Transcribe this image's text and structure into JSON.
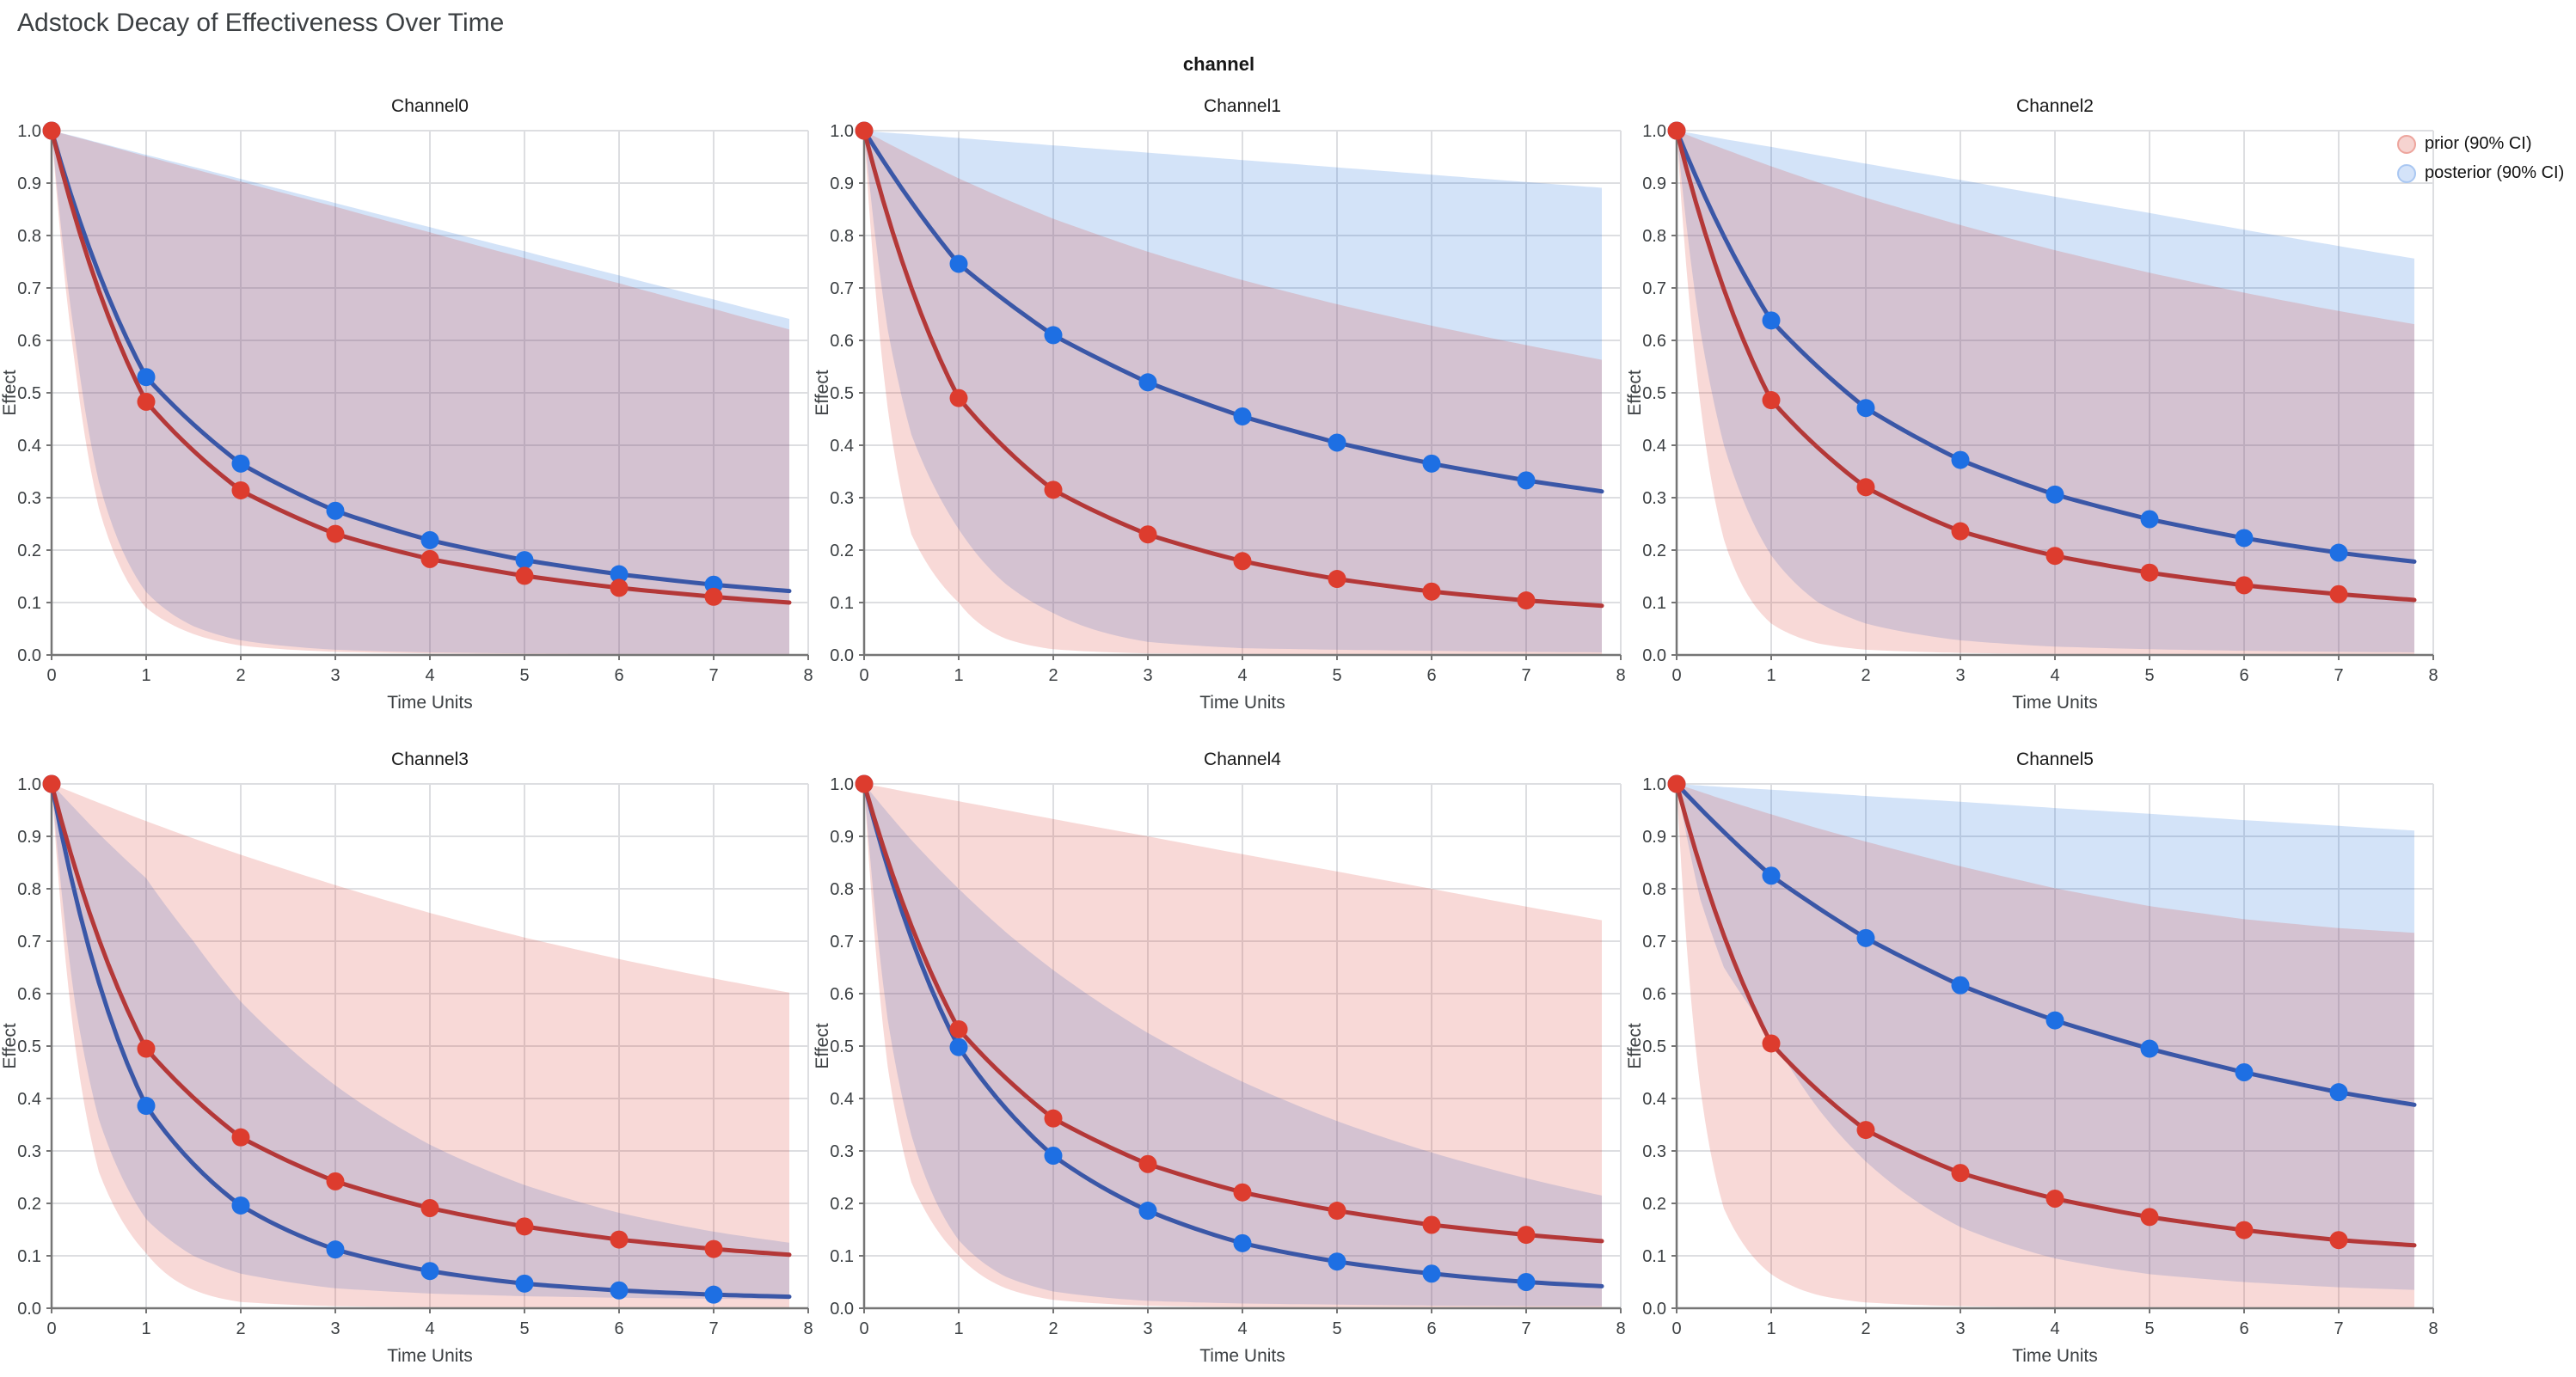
{
  "title": "Adstock Decay of Effectiveness Over Time",
  "facet_label": "channel",
  "legend": {
    "items": [
      {
        "label": "prior (90% CI)",
        "fill": "#F6D3D0",
        "stroke": "#EDA49C"
      },
      {
        "label": "posterior (90% CI)",
        "fill": "#D4E3F9",
        "stroke": "#A9C7F2"
      }
    ]
  },
  "style": {
    "prior_line": "#B43838",
    "prior_marker": "#DD3C2E",
    "posterior_line": "#3A57A7",
    "posterior_marker": "#1E6FE3",
    "prior_band_fill": "rgba(216,44,33,0.18)",
    "posterior_band_fill": "rgba(35,115,220,0.20)",
    "grid_color": "#DDDEE1",
    "axis_color": "#757575",
    "tick_label_color": "#3C4043",
    "axis_title_color": "#3C4043"
  },
  "chart_data": [
    {
      "type": "line",
      "title": "Channel0",
      "xlabel": "Time Units",
      "ylabel": "Effect",
      "xlim": [
        0,
        8
      ],
      "ylim": [
        0,
        1
      ],
      "xticks": [
        0,
        1,
        2,
        3,
        4,
        5,
        6,
        7,
        8
      ],
      "yticks": [
        0,
        0.1,
        0.2,
        0.3,
        0.4,
        0.5,
        0.6,
        0.7,
        0.8,
        0.9,
        1.0
      ],
      "x": [
        0,
        1,
        2,
        3,
        4,
        5,
        6,
        7,
        7.8
      ],
      "series": [
        {
          "name": "prior",
          "values": [
            1.0,
            0.483,
            0.314,
            0.231,
            0.183,
            0.151,
            0.128,
            0.111,
            0.1
          ]
        },
        {
          "name": "posterior",
          "values": [
            1.0,
            0.53,
            0.365,
            0.275,
            0.219,
            0.181,
            0.154,
            0.134,
            0.122
          ]
        }
      ],
      "bands": [
        {
          "name": "prior (90% CI)",
          "x": [
            0,
            0.25,
            0.5,
            1,
            1.5,
            2,
            3,
            4,
            5,
            6,
            7,
            7.8
          ],
          "upper": [
            1,
            0.988,
            0.976,
            0.951,
            0.927,
            0.903,
            0.855,
            0.806,
            0.757,
            0.709,
            0.66,
            0.621
          ],
          "lower": [
            1,
            0.55,
            0.28,
            0.09,
            0.04,
            0.018,
            0.006,
            0.003,
            0.002,
            0.001,
            0.001,
            0.001
          ]
        },
        {
          "name": "posterior (90% CI)",
          "x": [
            0,
            0.25,
            0.5,
            1,
            1.5,
            2,
            3,
            4,
            5,
            6,
            7,
            7.8
          ],
          "upper": [
            1,
            0.989,
            0.977,
            0.954,
            0.931,
            0.908,
            0.862,
            0.816,
            0.77,
            0.724,
            0.678,
            0.641
          ],
          "lower": [
            1,
            0.6,
            0.33,
            0.12,
            0.055,
            0.028,
            0.01,
            0.005,
            0.003,
            0.002,
            0.002,
            0.002
          ]
        }
      ]
    },
    {
      "type": "line",
      "title": "Channel1",
      "xlabel": "Time Units",
      "ylabel": "Effect",
      "xlim": [
        0,
        8
      ],
      "ylim": [
        0,
        1
      ],
      "xticks": [
        0,
        1,
        2,
        3,
        4,
        5,
        6,
        7,
        8
      ],
      "yticks": [
        0,
        0.1,
        0.2,
        0.3,
        0.4,
        0.5,
        0.6,
        0.7,
        0.8,
        0.9,
        1.0
      ],
      "x": [
        0,
        1,
        2,
        3,
        4,
        5,
        6,
        7,
        7.8
      ],
      "series": [
        {
          "name": "prior",
          "values": [
            1.0,
            0.49,
            0.315,
            0.23,
            0.179,
            0.145,
            0.121,
            0.104,
            0.094
          ]
        },
        {
          "name": "posterior",
          "values": [
            1.0,
            0.746,
            0.61,
            0.52,
            0.455,
            0.405,
            0.365,
            0.333,
            0.312
          ]
        }
      ],
      "bands": [
        {
          "name": "prior (90% CI)",
          "x": [
            0,
            0.25,
            0.5,
            1,
            1.5,
            2,
            3,
            4,
            5,
            6,
            7,
            7.8
          ],
          "upper": [
            1,
            0.976,
            0.953,
            0.909,
            0.869,
            0.832,
            0.769,
            0.715,
            0.669,
            0.628,
            0.591,
            0.563
          ],
          "lower": [
            1,
            0.47,
            0.23,
            0.1,
            0.031,
            0.011,
            0.003,
            0.002,
            0.001,
            0.001,
            0.001,
            0.001
          ]
        },
        {
          "name": "posterior (90% CI)",
          "x": [
            0,
            0.25,
            0.5,
            1,
            1.5,
            2,
            3,
            4,
            5,
            6,
            7,
            7.8
          ],
          "upper": [
            1,
            0.996,
            0.993,
            0.986,
            0.979,
            0.972,
            0.958,
            0.944,
            0.93,
            0.916,
            0.902,
            0.891
          ],
          "lower": [
            1,
            0.62,
            0.42,
            0.24,
            0.135,
            0.08,
            0.025,
            0.013,
            0.01,
            0.008,
            0.006,
            0.005
          ]
        }
      ]
    },
    {
      "type": "line",
      "title": "Channel2",
      "xlabel": "Time Units",
      "ylabel": "Effect",
      "xlim": [
        0,
        8
      ],
      "ylim": [
        0,
        1
      ],
      "xticks": [
        0,
        1,
        2,
        3,
        4,
        5,
        6,
        7,
        8
      ],
      "yticks": [
        0,
        0.1,
        0.2,
        0.3,
        0.4,
        0.5,
        0.6,
        0.7,
        0.8,
        0.9,
        1.0
      ],
      "x": [
        0,
        1,
        2,
        3,
        4,
        5,
        6,
        7,
        7.8
      ],
      "series": [
        {
          "name": "prior",
          "values": [
            1.0,
            0.486,
            0.32,
            0.236,
            0.189,
            0.157,
            0.133,
            0.116,
            0.105
          ]
        },
        {
          "name": "posterior",
          "values": [
            1.0,
            0.638,
            0.471,
            0.372,
            0.306,
            0.259,
            0.223,
            0.195,
            0.178
          ]
        }
      ],
      "bands": [
        {
          "name": "prior (90% CI)",
          "x": [
            0,
            0.25,
            0.5,
            1,
            1.5,
            2,
            3,
            4,
            5,
            6,
            7,
            7.8
          ],
          "upper": [
            1,
            0.982,
            0.965,
            0.932,
            0.901,
            0.872,
            0.82,
            0.772,
            0.729,
            0.691,
            0.656,
            0.631
          ],
          "lower": [
            1,
            0.48,
            0.22,
            0.06,
            0.022,
            0.01,
            0.004,
            0.002,
            0.001,
            0.001,
            0.001,
            0.001
          ]
        },
        {
          "name": "posterior (90% CI)",
          "x": [
            0,
            0.25,
            0.5,
            1,
            1.5,
            2,
            3,
            4,
            5,
            6,
            7,
            7.8
          ],
          "upper": [
            1,
            0.992,
            0.984,
            0.969,
            0.953,
            0.937,
            0.906,
            0.874,
            0.843,
            0.811,
            0.78,
            0.756
          ],
          "lower": [
            1,
            0.62,
            0.4,
            0.19,
            0.1,
            0.06,
            0.028,
            0.016,
            0.011,
            0.008,
            0.006,
            0.005
          ]
        }
      ]
    },
    {
      "type": "line",
      "title": "Channel3",
      "xlabel": "Time Units",
      "ylabel": "Effect",
      "xlim": [
        0,
        8
      ],
      "ylim": [
        0,
        1
      ],
      "xticks": [
        0,
        1,
        2,
        3,
        4,
        5,
        6,
        7,
        8
      ],
      "yticks": [
        0,
        0.1,
        0.2,
        0.3,
        0.4,
        0.5,
        0.6,
        0.7,
        0.8,
        0.9,
        1.0
      ],
      "x": [
        0,
        1,
        2,
        3,
        4,
        5,
        6,
        7,
        7.8
      ],
      "series": [
        {
          "name": "prior",
          "values": [
            1.0,
            0.495,
            0.326,
            0.242,
            0.191,
            0.156,
            0.131,
            0.113,
            0.102
          ]
        },
        {
          "name": "posterior",
          "values": [
            1.0,
            0.386,
            0.196,
            0.112,
            0.071,
            0.047,
            0.034,
            0.026,
            0.022
          ]
        }
      ],
      "bands": [
        {
          "name": "prior (90% CI)",
          "x": [
            0,
            0.25,
            0.5,
            1,
            1.5,
            2,
            3,
            4,
            5,
            6,
            7,
            7.8
          ],
          "upper": [
            1,
            0.982,
            0.964,
            0.929,
            0.896,
            0.865,
            0.807,
            0.754,
            0.707,
            0.666,
            0.629,
            0.602
          ],
          "lower": [
            1,
            0.5,
            0.26,
            0.105,
            0.035,
            0.012,
            0.004,
            0.002,
            0.001,
            0.001,
            0.001,
            0.001
          ]
        },
        {
          "name": "posterior (90% CI)",
          "x": [
            0,
            0.25,
            0.5,
            1,
            1.5,
            2,
            3,
            4,
            5,
            6,
            7,
            7.8
          ],
          "upper": [
            1,
            0.952,
            0.905,
            0.82,
            0.7,
            0.585,
            0.425,
            0.312,
            0.235,
            0.182,
            0.146,
            0.125
          ],
          "lower": [
            1,
            0.58,
            0.36,
            0.17,
            0.1,
            0.066,
            0.038,
            0.028,
            0.023,
            0.02,
            0.018,
            0.017
          ]
        }
      ]
    },
    {
      "type": "line",
      "title": "Channel4",
      "xlabel": "Time Units",
      "ylabel": "Effect",
      "xlim": [
        0,
        8
      ],
      "ylim": [
        0,
        1
      ],
      "xticks": [
        0,
        1,
        2,
        3,
        4,
        5,
        6,
        7,
        8
      ],
      "yticks": [
        0,
        0.1,
        0.2,
        0.3,
        0.4,
        0.5,
        0.6,
        0.7,
        0.8,
        0.9,
        1.0
      ],
      "x": [
        0,
        1,
        2,
        3,
        4,
        5,
        6,
        7,
        7.8
      ],
      "series": [
        {
          "name": "prior",
          "values": [
            1.0,
            0.532,
            0.362,
            0.275,
            0.221,
            0.186,
            0.159,
            0.14,
            0.128
          ]
        },
        {
          "name": "posterior",
          "values": [
            1.0,
            0.498,
            0.291,
            0.186,
            0.124,
            0.089,
            0.066,
            0.05,
            0.042
          ]
        }
      ],
      "bands": [
        {
          "name": "prior (90% CI)",
          "x": [
            0,
            0.25,
            0.5,
            1,
            1.5,
            2,
            3,
            4,
            5,
            6,
            7,
            7.8
          ],
          "upper": [
            1,
            0.992,
            0.983,
            0.967,
            0.95,
            0.933,
            0.9,
            0.866,
            0.833,
            0.8,
            0.766,
            0.74
          ],
          "lower": [
            1,
            0.46,
            0.24,
            0.1,
            0.038,
            0.016,
            0.005,
            0.002,
            0.001,
            0.001,
            0.001,
            0.001
          ]
        },
        {
          "name": "posterior (90% CI)",
          "x": [
            0,
            0.25,
            0.5,
            1,
            1.5,
            2,
            3,
            4,
            5,
            6,
            7,
            7.8
          ],
          "upper": [
            1,
            0.945,
            0.893,
            0.8,
            0.717,
            0.645,
            0.525,
            0.432,
            0.357,
            0.297,
            0.248,
            0.215
          ],
          "lower": [
            1,
            0.55,
            0.33,
            0.13,
            0.06,
            0.032,
            0.014,
            0.009,
            0.007,
            0.005,
            0.004,
            0.004
          ]
        }
      ]
    },
    {
      "type": "line",
      "title": "Channel5",
      "xlabel": "Time Units",
      "ylabel": "Effect",
      "xlim": [
        0,
        8
      ],
      "ylim": [
        0,
        1
      ],
      "xticks": [
        0,
        1,
        2,
        3,
        4,
        5,
        6,
        7,
        8
      ],
      "yticks": [
        0,
        0.1,
        0.2,
        0.3,
        0.4,
        0.5,
        0.6,
        0.7,
        0.8,
        0.9,
        1.0
      ],
      "x": [
        0,
        1,
        2,
        3,
        4,
        5,
        6,
        7,
        7.8
      ],
      "series": [
        {
          "name": "prior",
          "values": [
            1.0,
            0.505,
            0.34,
            0.258,
            0.209,
            0.174,
            0.149,
            0.13,
            0.12
          ]
        },
        {
          "name": "posterior",
          "values": [
            1.0,
            0.825,
            0.706,
            0.616,
            0.549,
            0.495,
            0.45,
            0.412,
            0.388
          ]
        }
      ],
      "bands": [
        {
          "name": "prior (90% CI)",
          "x": [
            0,
            0.25,
            0.5,
            1,
            1.5,
            2,
            3,
            4,
            5,
            6,
            7,
            7.8
          ],
          "upper": [
            1,
            0.985,
            0.97,
            0.942,
            0.915,
            0.89,
            0.843,
            0.801,
            0.767,
            0.742,
            0.725,
            0.716
          ],
          "lower": [
            1,
            0.42,
            0.19,
            0.065,
            0.025,
            0.011,
            0.004,
            0.002,
            0.002,
            0.001,
            0.001,
            0.001
          ]
        },
        {
          "name": "posterior (90% CI)",
          "x": [
            0,
            0.25,
            0.5,
            1,
            1.5,
            2,
            3,
            4,
            5,
            6,
            7,
            7.8
          ],
          "upper": [
            1,
            0.997,
            0.994,
            0.989,
            0.983,
            0.977,
            0.966,
            0.954,
            0.943,
            0.931,
            0.92,
            0.911
          ],
          "lower": [
            1,
            0.78,
            0.65,
            0.52,
            0.38,
            0.28,
            0.155,
            0.095,
            0.065,
            0.05,
            0.04,
            0.035
          ]
        }
      ]
    }
  ]
}
